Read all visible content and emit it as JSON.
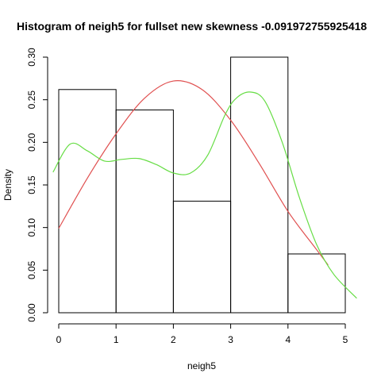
{
  "chart_data": {
    "type": "bar",
    "title": "Histogram of neigh5 for fullset new skewness -0.091972755925418",
    "xlabel": "neigh5",
    "ylabel": "Density",
    "xlim": [
      0,
      5
    ],
    "ylim": [
      0,
      0.3
    ],
    "x_ticks": [
      "0",
      "1",
      "2",
      "3",
      "4",
      "5"
    ],
    "y_ticks": [
      "0.00",
      "0.05",
      "0.10",
      "0.15",
      "0.20",
      "0.25",
      "0.30"
    ],
    "bins": [
      {
        "from": 0,
        "to": 1,
        "density": 0.262
      },
      {
        "from": 1,
        "to": 2,
        "density": 0.238
      },
      {
        "from": 2,
        "to": 3,
        "density": 0.131
      },
      {
        "from": 3,
        "to": 4,
        "density": 0.3
      },
      {
        "from": 4,
        "to": 5,
        "density": 0.069
      }
    ],
    "series": [
      {
        "color": "#e05050",
        "x": [
          0,
          0.5,
          1.0,
          1.5,
          2.0,
          2.5,
          3.0,
          3.5,
          4.0,
          4.5,
          4.7
        ],
        "y": [
          0.099,
          0.158,
          0.21,
          0.252,
          0.272,
          0.262,
          0.226,
          0.175,
          0.119,
          0.074,
          0.056
        ]
      },
      {
        "color": "#66dd44",
        "x": [
          -0.1,
          0.2,
          0.5,
          0.8,
          1.1,
          1.4,
          1.7,
          2.0,
          2.3,
          2.6,
          2.9,
          3.1,
          3.35,
          3.6,
          3.9,
          4.2,
          4.5,
          4.8,
          5.2
        ],
        "y": [
          0.165,
          0.198,
          0.19,
          0.178,
          0.18,
          0.181,
          0.174,
          0.164,
          0.164,
          0.185,
          0.232,
          0.252,
          0.259,
          0.248,
          0.2,
          0.135,
          0.08,
          0.045,
          0.017
        ]
      }
    ]
  }
}
